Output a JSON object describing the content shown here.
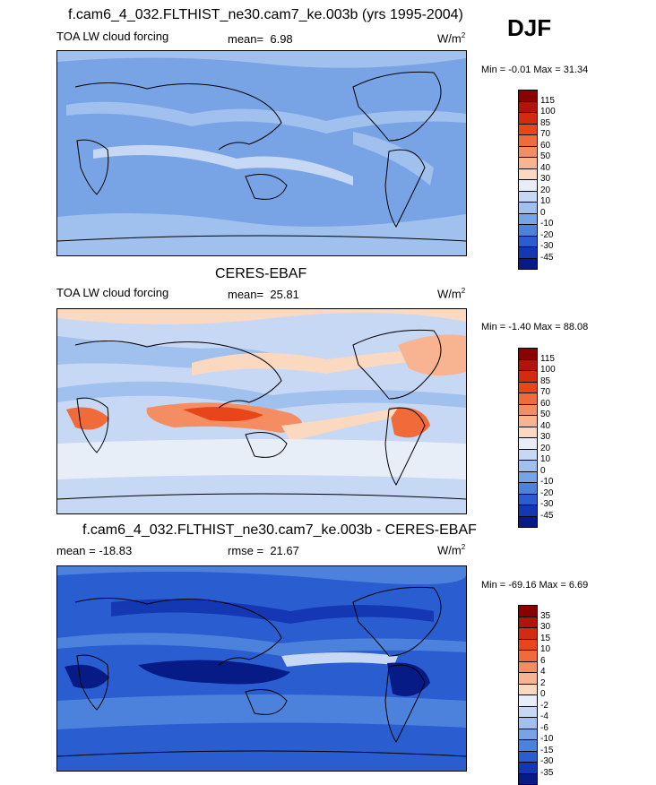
{
  "season": "DJF",
  "panels": [
    {
      "title": "f.cam6_4_032.FLTHIST_ne30.cam7_ke.003b (yrs 1995-2004)",
      "left_label": "TOA LW cloud forcing",
      "stat_label": "mean=",
      "stat_value": "6.98",
      "units": "W/m",
      "units_sup": "2",
      "minmax": "Min =  -0.01 Max =  31.34",
      "colorbar": {
        "labels": [
          "115",
          "100",
          "85",
          "70",
          "60",
          "50",
          "40",
          "30",
          "20",
          "10",
          "0",
          "-10",
          "-20",
          "-30",
          "-45"
        ],
        "colors": [
          "#8b0000",
          "#b0140a",
          "#d42a10",
          "#e8451a",
          "#f06a3a",
          "#f48e62",
          "#f8b490",
          "#fbd8c0",
          "#e8eef8",
          "#c6d8f4",
          "#a0c0ee",
          "#78a4e6",
          "#4d82dc",
          "#2a5ed0",
          "#1438b4",
          "#071b86"
        ]
      }
    },
    {
      "title": "CERES-EBAF",
      "left_label": "TOA LW cloud forcing",
      "stat_label": "mean=",
      "stat_value": "25.81",
      "units": "W/m",
      "units_sup": "2",
      "minmax": "Min =  -1.40 Max =  88.08",
      "colorbar": {
        "labels": [
          "115",
          "100",
          "85",
          "70",
          "60",
          "50",
          "40",
          "30",
          "20",
          "10",
          "0",
          "-10",
          "-20",
          "-30",
          "-45"
        ],
        "colors": [
          "#8b0000",
          "#b0140a",
          "#d42a10",
          "#e8451a",
          "#f06a3a",
          "#f48e62",
          "#f8b490",
          "#fbd8c0",
          "#e8eef8",
          "#c6d8f4",
          "#a0c0ee",
          "#78a4e6",
          "#4d82dc",
          "#2a5ed0",
          "#1438b4",
          "#071b86"
        ]
      }
    },
    {
      "title": "f.cam6_4_032.FLTHIST_ne30.cam7_ke.003b - CERES-EBAF",
      "left_label": "mean = -18.83",
      "stat_label": "rmse =",
      "stat_value": "21.67",
      "units": "W/m",
      "units_sup": "2",
      "minmax": "Min =  -69.16 Max =   6.69",
      "colorbar": {
        "labels": [
          "35",
          "30",
          "15",
          "10",
          "6",
          "4",
          "2",
          "0",
          "-2",
          "-4",
          "-6",
          "-10",
          "-15",
          "-30",
          "-35"
        ],
        "colors": [
          "#8b0000",
          "#b0140a",
          "#d42a10",
          "#e8451a",
          "#f06a3a",
          "#f48e62",
          "#f8b490",
          "#fbd8c0",
          "#e8eef8",
          "#c6d8f4",
          "#a0c0ee",
          "#78a4e6",
          "#4d82dc",
          "#2a5ed0",
          "#1438b4",
          "#071b86"
        ]
      }
    }
  ],
  "chart_data": [
    {
      "type": "heatmap",
      "title": "f.cam6_4_032.FLTHIST_ne30.cam7_ke.003b (yrs 1995-2004)",
      "variable": "TOA LW cloud forcing",
      "season": "DJF",
      "mean": 6.98,
      "min": -0.01,
      "max": 31.34,
      "units": "W/m2",
      "levels": [
        -45,
        -30,
        -20,
        -10,
        0,
        10,
        20,
        30,
        40,
        50,
        60,
        70,
        85,
        100,
        115
      ]
    },
    {
      "type": "heatmap",
      "title": "CERES-EBAF",
      "variable": "TOA LW cloud forcing",
      "season": "DJF",
      "mean": 25.81,
      "min": -1.4,
      "max": 88.08,
      "units": "W/m2",
      "levels": [
        -45,
        -30,
        -20,
        -10,
        0,
        10,
        20,
        30,
        40,
        50,
        60,
        70,
        85,
        100,
        115
      ]
    },
    {
      "type": "heatmap",
      "title": "f.cam6_4_032.FLTHIST_ne30.cam7_ke.003b - CERES-EBAF",
      "variable": "difference",
      "season": "DJF",
      "mean": -18.83,
      "rmse": 21.67,
      "min": -69.16,
      "max": 6.69,
      "units": "W/m2",
      "levels": [
        -35,
        -30,
        -15,
        -10,
        -6,
        -4,
        -2,
        0,
        2,
        4,
        6,
        10,
        15,
        30,
        35
      ]
    }
  ]
}
